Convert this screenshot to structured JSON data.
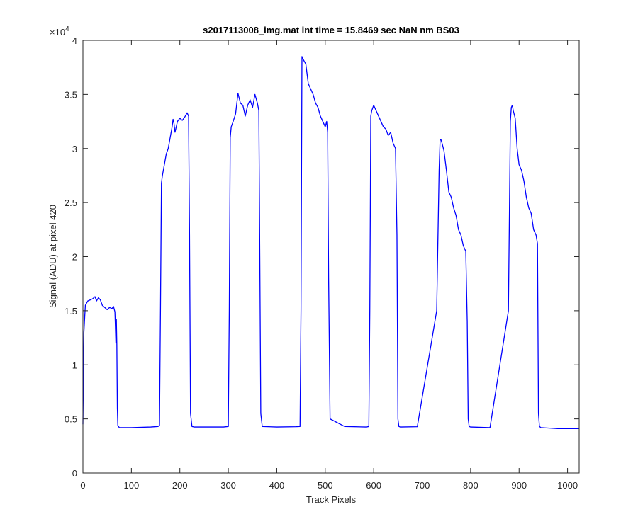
{
  "figure": {
    "title": "s2017113008_img.mat int time = 15.8469 sec  NaN nm BS03",
    "xlabel": "Track Pixels",
    "ylabel": "Signal (ADU) at pixel 420",
    "y_exponent_label": "×10",
    "y_exponent_power": "4"
  },
  "chart_data": {
    "type": "line",
    "title": "s2017113008_img.mat int time = 15.8469 sec  NaN nm BS03",
    "xlabel": "Track Pixels",
    "ylabel": "Signal (ADU) at pixel 420",
    "xlim": [
      0,
      1024
    ],
    "ylim": [
      0,
      40000
    ],
    "x_ticks": [
      0,
      100,
      200,
      300,
      400,
      500,
      600,
      700,
      800,
      900,
      1000
    ],
    "x_tick_labels": [
      "0",
      "100",
      "200",
      "300",
      "400",
      "500",
      "600",
      "700",
      "800",
      "900",
      "1000"
    ],
    "y_ticks": [
      0,
      5000,
      10000,
      15000,
      20000,
      25000,
      30000,
      35000,
      40000
    ],
    "y_tick_labels": [
      "0",
      "0.5",
      "1",
      "1.5",
      "2",
      "2.5",
      "3",
      "3.5",
      "4"
    ],
    "grid": false,
    "line_color": "#0000ff",
    "series": [
      {
        "x": [
          0,
          2,
          5,
          10,
          15,
          20,
          25,
          28,
          32,
          36,
          40,
          45,
          50,
          55,
          60,
          63,
          66,
          67,
          68,
          69,
          70,
          71,
          72,
          75,
          100,
          140,
          155,
          158,
          160,
          162,
          164,
          168,
          172,
          176,
          180,
          184,
          186,
          188,
          190,
          195,
          200,
          205,
          210,
          215,
          218,
          220,
          222,
          225,
          230,
          260,
          290,
          300,
          302,
          304,
          306,
          310,
          315,
          320,
          325,
          330,
          335,
          340,
          345,
          350,
          355,
          360,
          363,
          365,
          367,
          370,
          400,
          440,
          448,
          450,
          452,
          455,
          460,
          465,
          470,
          475,
          480,
          485,
          490,
          495,
          500,
          503,
          505,
          507,
          510,
          540,
          585,
          590,
          592,
          594,
          596,
          600,
          605,
          610,
          615,
          620,
          625,
          630,
          635,
          640,
          645,
          648,
          650,
          652,
          655,
          690,
          730,
          735,
          737,
          739,
          741,
          745,
          750,
          755,
          760,
          765,
          770,
          775,
          780,
          785,
          790,
          793,
          795,
          797,
          800,
          840,
          878,
          882,
          884,
          886,
          888,
          892,
          896,
          900,
          905,
          910,
          915,
          920,
          925,
          930,
          935,
          938,
          940,
          942,
          945,
          980,
          1024
        ],
        "y": [
          4500,
          13000,
          15500,
          15900,
          16000,
          16100,
          16300,
          15900,
          16200,
          16000,
          15500,
          15300,
          15100,
          15300,
          15200,
          15400,
          14900,
          13500,
          12000,
          14200,
          11800,
          6000,
          4400,
          4200,
          4200,
          4250,
          4300,
          4400,
          15000,
          26800,
          27500,
          28500,
          29500,
          30000,
          31000,
          32000,
          32700,
          32300,
          31500,
          32500,
          32800,
          32600,
          32900,
          33300,
          33000,
          22000,
          5500,
          4300,
          4250,
          4250,
          4250,
          4300,
          15000,
          31000,
          32000,
          32500,
          33200,
          35100,
          34200,
          34000,
          33000,
          34000,
          34500,
          33800,
          35000,
          34200,
          33500,
          20000,
          5500,
          4300,
          4250,
          4280,
          4300,
          15000,
          38500,
          38200,
          37800,
          36000,
          35500,
          35000,
          34200,
          33800,
          33000,
          32500,
          32000,
          32500,
          31500,
          18000,
          5000,
          4300,
          4250,
          4300,
          15000,
          33000,
          33500,
          34000,
          33500,
          33000,
          32500,
          32000,
          31800,
          31200,
          31500,
          30500,
          30000,
          22000,
          5000,
          4300,
          4250,
          4280,
          15000,
          28000,
          30800,
          30800,
          30500,
          29800,
          28000,
          26000,
          25500,
          24500,
          23800,
          22500,
          22000,
          21000,
          20500,
          14000,
          5000,
          4300,
          4250,
          4200,
          15000,
          32500,
          33800,
          34000,
          33500,
          32800,
          30000,
          28500,
          28000,
          27000,
          25500,
          24500,
          24000,
          22500,
          22000,
          21200,
          5500,
          4300,
          4200,
          4100,
          4100
        ]
      }
    ]
  }
}
